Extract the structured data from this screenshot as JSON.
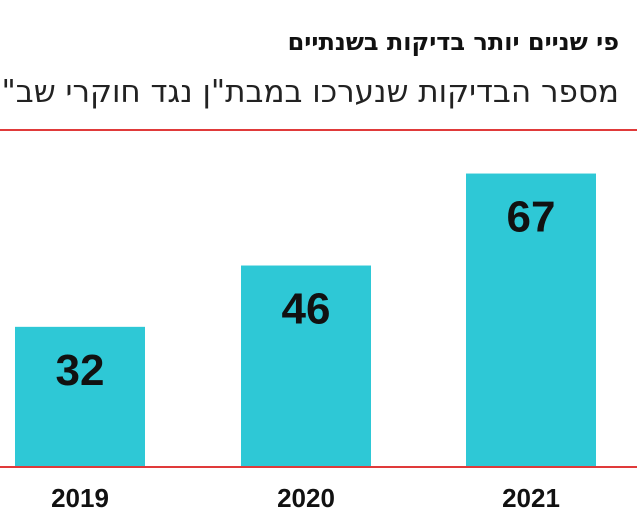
{
  "header": {
    "subtitle": "פי שניים יותר בדיקות בשנתיים",
    "title": "מספר הבדיקות שנערכו במבת\"ן נגד חוקרי שב\"כ"
  },
  "colors": {
    "bar": "#2ec8d6",
    "rule": "#e03a3a",
    "text": "#111111"
  },
  "chart_data": {
    "type": "bar",
    "title": "מספר הבדיקות שנערכו במבת\"ן נגד חוקרי שב\"כ",
    "subtitle": "פי שניים יותר בדיקות בשנתיים",
    "categories": [
      "2019",
      "2020",
      "2021"
    ],
    "values": [
      32,
      46,
      67
    ],
    "data_labels": [
      "32",
      "46",
      "67"
    ],
    "xlabel": "",
    "ylabel": "",
    "ylim": [
      0,
      90
    ],
    "grid": false,
    "legend": "none"
  }
}
